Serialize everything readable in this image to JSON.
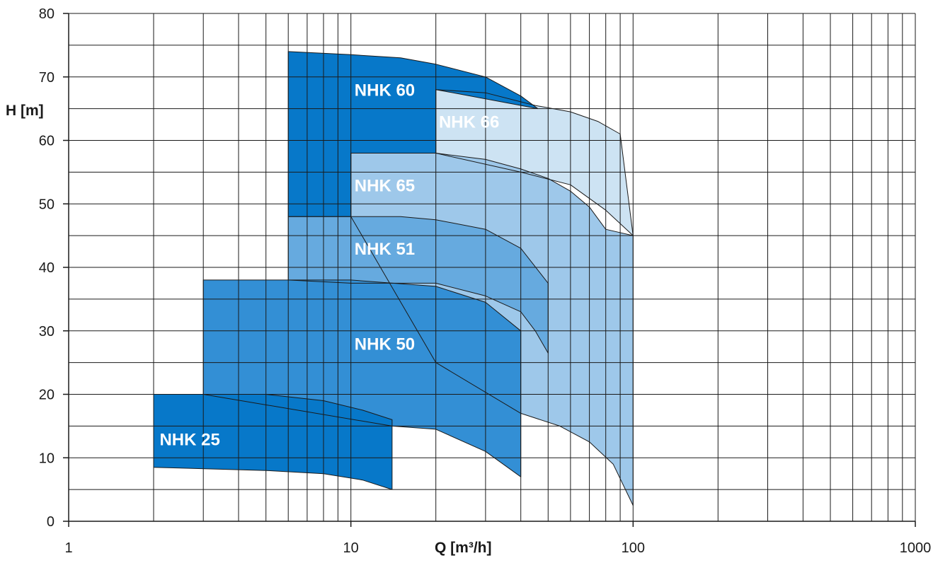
{
  "chart_data": {
    "type": "area",
    "title": "",
    "xlabel": "Q [m³/h]",
    "ylabel": "H [m]",
    "xscale": "log",
    "xlim": [
      1,
      1000
    ],
    "ylim": [
      0,
      80
    ],
    "grid": true,
    "xticks": [
      1,
      10,
      100,
      1000
    ],
    "xtick_labels": [
      "1",
      "10",
      "100",
      "1000"
    ],
    "yticks": [
      0,
      10,
      20,
      30,
      40,
      50,
      60,
      70,
      80
    ],
    "ytick_labels": [
      "0",
      "10",
      "20",
      "30",
      "40",
      "50",
      "60",
      "70",
      "80"
    ],
    "series": [
      {
        "name": "NHK 66",
        "color": "#cde3f3",
        "label_at": [
          20.5,
          62
        ],
        "polygon": [
          [
            20,
            68
          ],
          [
            30,
            67.5
          ],
          [
            45,
            65.5
          ],
          [
            60,
            64.5
          ],
          [
            75,
            63
          ],
          [
            90,
            61
          ],
          [
            100,
            45
          ],
          [
            80,
            49
          ],
          [
            60,
            53
          ],
          [
            40,
            55
          ],
          [
            20,
            58
          ]
        ]
      },
      {
        "name": "NHK 65",
        "color": "#9ec8ea",
        "label_at": [
          10.3,
          52
        ],
        "polygon": [
          [
            10,
            58
          ],
          [
            20,
            58
          ],
          [
            30,
            57
          ],
          [
            40,
            55.5
          ],
          [
            50,
            54
          ],
          [
            60,
            52
          ],
          [
            70,
            49.5
          ],
          [
            80,
            46
          ],
          [
            100,
            45
          ],
          [
            100,
            2.5
          ],
          [
            85,
            9
          ],
          [
            70,
            12.5
          ],
          [
            55,
            15
          ],
          [
            40,
            17
          ],
          [
            20,
            25
          ],
          [
            10,
            48
          ]
        ]
      },
      {
        "name": "NHK 51",
        "color": "#66aadf",
        "label_at": [
          10.3,
          42
        ],
        "polygon": [
          [
            6,
            48
          ],
          [
            10,
            48
          ],
          [
            15,
            48
          ],
          [
            20,
            47.5
          ],
          [
            30,
            46
          ],
          [
            40,
            43
          ],
          [
            50,
            37.5
          ],
          [
            50,
            26.5
          ],
          [
            45,
            30
          ],
          [
            40,
            33
          ],
          [
            30,
            35.5
          ],
          [
            20,
            37.5
          ],
          [
            10,
            37.5
          ],
          [
            6,
            38
          ]
        ]
      },
      {
        "name": "NHK 60",
        "color": "#0778c9",
        "label_at": [
          10.3,
          67
        ],
        "polygon": [
          [
            6,
            74
          ],
          [
            10,
            73.5
          ],
          [
            15,
            73
          ],
          [
            20,
            72
          ],
          [
            30,
            70
          ],
          [
            40,
            67
          ],
          [
            46,
            65
          ],
          [
            20,
            68
          ],
          [
            20,
            58
          ],
          [
            10,
            58
          ],
          [
            10,
            48
          ],
          [
            6,
            48
          ]
        ]
      },
      {
        "name": "NHK 50",
        "color": "#338fd5",
        "label_at": [
          10.3,
          27
        ],
        "polygon": [
          [
            3,
            38
          ],
          [
            10,
            38
          ],
          [
            20,
            37
          ],
          [
            30,
            34.5
          ],
          [
            40,
            30
          ],
          [
            40,
            7
          ],
          [
            30,
            11
          ],
          [
            20,
            14.5
          ],
          [
            14,
            15
          ],
          [
            3,
            20
          ]
        ]
      },
      {
        "name": "NHK 25",
        "color": "#0778c9",
        "label_at": [
          2.1,
          12
        ],
        "polygon": [
          [
            2,
            20
          ],
          [
            5,
            20
          ],
          [
            8,
            19
          ],
          [
            11,
            17.5
          ],
          [
            14,
            16
          ],
          [
            14,
            5
          ],
          [
            11,
            6.5
          ],
          [
            8,
            7.5
          ],
          [
            5,
            8
          ],
          [
            2,
            8.5
          ]
        ]
      }
    ]
  }
}
